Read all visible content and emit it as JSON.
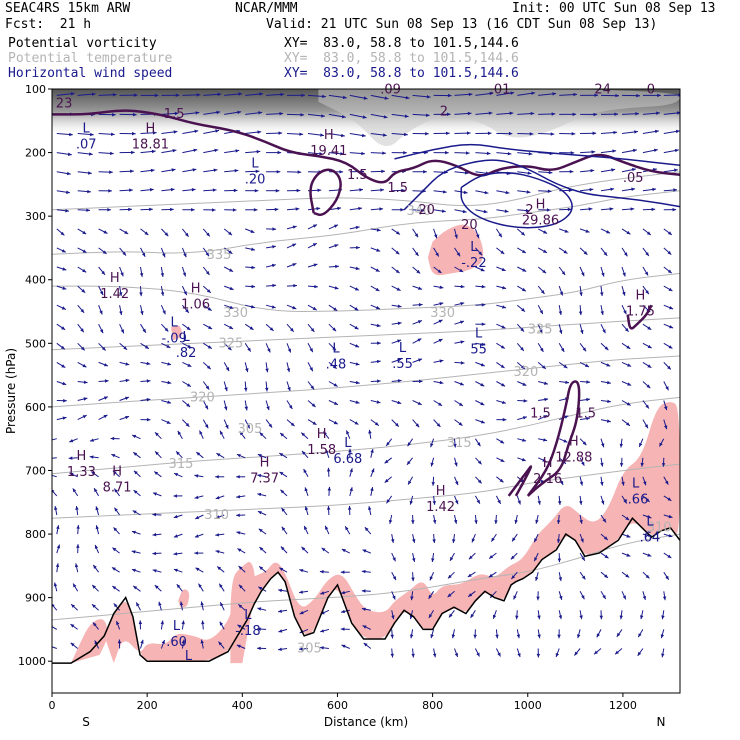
{
  "header": {
    "model": "SEAC4RS 15km ARW",
    "org": "NCAR/MMM",
    "init": "Init: 00 UTC Sun 08 Sep 13",
    "fcst": "Fcst:  21 h",
    "valid": "Valid: 21 UTC Sun 08 Sep 13 (16 CDT Sun 08 Sep 13)",
    "fields": [
      {
        "name": "Potential vorticity",
        "xy": "XY=  83.0, 58.8 to 101.5,144.6"
      },
      {
        "name": "Potential temperature",
        "xy": "XY=  83.0, 58.8 to 101.5,144.6"
      },
      {
        "name": "Horizontal wind speed",
        "xy": "XY=  83.0, 58.8 to 101.5,144.6"
      }
    ]
  },
  "colors": {
    "pv": "#4a1250",
    "theta": "#b4b4b4",
    "wind": "#1a1a8c",
    "pv_fill": "#f6b4b4",
    "terrain": "#000000"
  },
  "chart_data": {
    "type": "cross-section",
    "xlabel": "Distance (km)",
    "ylabel": "Pressure (hPa)",
    "xlim": [
      0,
      1320
    ],
    "ylim": [
      1050,
      100
    ],
    "x_ticks": [
      0,
      200,
      400,
      600,
      800,
      1000,
      1200
    ],
    "y_ticks": [
      100,
      200,
      300,
      400,
      500,
      600,
      700,
      800,
      900,
      1000
    ],
    "ends": {
      "left": "S",
      "right": "N"
    },
    "terrain": [
      [
        0,
        1003
      ],
      [
        40,
        1003
      ],
      [
        80,
        985
      ],
      [
        110,
        960
      ],
      [
        130,
        925
      ],
      [
        155,
        900
      ],
      [
        170,
        930
      ],
      [
        185,
        990
      ],
      [
        200,
        1000
      ],
      [
        260,
        1000
      ],
      [
        330,
        1000
      ],
      [
        370,
        985
      ],
      [
        390,
        960
      ],
      [
        410,
        935
      ],
      [
        425,
        910
      ],
      [
        440,
        890
      ],
      [
        460,
        870
      ],
      [
        475,
        860
      ],
      [
        490,
        875
      ],
      [
        510,
        930
      ],
      [
        530,
        960
      ],
      [
        550,
        955
      ],
      [
        580,
        900
      ],
      [
        600,
        880
      ],
      [
        630,
        940
      ],
      [
        655,
        965
      ],
      [
        700,
        965
      ],
      [
        720,
        940
      ],
      [
        740,
        920
      ],
      [
        760,
        930
      ],
      [
        780,
        950
      ],
      [
        800,
        950
      ],
      [
        820,
        925
      ],
      [
        845,
        915
      ],
      [
        870,
        925
      ],
      [
        890,
        905
      ],
      [
        910,
        890
      ],
      [
        930,
        900
      ],
      [
        950,
        905
      ],
      [
        965,
        880
      ],
      [
        975,
        875
      ],
      [
        990,
        870
      ],
      [
        1010,
        860
      ],
      [
        1030,
        840
      ],
      [
        1060,
        825
      ],
      [
        1080,
        800
      ],
      [
        1100,
        810
      ],
      [
        1120,
        835
      ],
      [
        1150,
        830
      ],
      [
        1190,
        810
      ],
      [
        1220,
        775
      ],
      [
        1260,
        805
      ],
      [
        1280,
        795
      ],
      [
        1300,
        790
      ],
      [
        1320,
        810
      ]
    ],
    "theta_labels": [
      {
        "x": 390,
        "p": 635,
        "t": "305"
      },
      {
        "x": 515,
        "p": 980,
        "t": "305"
      },
      {
        "x": 320,
        "p": 770,
        "t": "310"
      },
      {
        "x": 1250,
        "p": 790,
        "t": "310"
      },
      {
        "x": 245,
        "p": 690,
        "t": "315"
      },
      {
        "x": 830,
        "p": 657,
        "t": "315"
      },
      {
        "x": 290,
        "p": 585,
        "t": "320"
      },
      {
        "x": 970,
        "p": 545,
        "t": "320"
      },
      {
        "x": 350,
        "p": 500,
        "t": "325"
      },
      {
        "x": 1000,
        "p": 478,
        "t": "325"
      },
      {
        "x": 360,
        "p": 452,
        "t": "330"
      },
      {
        "x": 795,
        "p": 452,
        "t": "330"
      },
      {
        "x": 325,
        "p": 361,
        "t": "335"
      },
      {
        "x": 745,
        "p": 292,
        "t": "340"
      }
    ],
    "pv_labels": [
      {
        "x": 8,
        "p": 123,
        "t": "23"
      },
      {
        "x": 235,
        "p": 139,
        "t": "1.5"
      },
      {
        "x": 690,
        "p": 101,
        "t": ".09"
      },
      {
        "x": 920,
        "p": 101,
        "t": ".01"
      },
      {
        "x": 1140,
        "p": 101,
        "t": "24"
      },
      {
        "x": 1250,
        "p": 101,
        "t": "0"
      },
      {
        "x": 815,
        "p": 135,
        "t": "2"
      },
      {
        "x": 620,
        "p": 235,
        "t": "1.5"
      },
      {
        "x": 705,
        "p": 256,
        "t": "1.5"
      },
      {
        "x": 1200,
        "p": 240,
        "t": ".05"
      },
      {
        "x": 995,
        "p": 290,
        "t": "2"
      },
      {
        "x": 1005,
        "p": 610,
        "t": "1.5"
      },
      {
        "x": 770,
        "p": 290,
        "t": "20"
      },
      {
        "x": 860,
        "p": 314,
        "t": "20"
      },
      {
        "x": 1100,
        "p": 610,
        "t": "1.5"
      }
    ],
    "extrema": [
      {
        "x": 55,
        "p": 175,
        "type": "L",
        "v": ".07"
      },
      {
        "x": 190,
        "p": 175,
        "type": "H",
        "v": "18.81"
      },
      {
        "x": 410,
        "p": 230,
        "type": "L",
        "v": ".20"
      },
      {
        "x": 565,
        "p": 185,
        "type": "H",
        "v": "19.41"
      },
      {
        "x": 1010,
        "p": 294,
        "type": "H",
        "v": "29.86"
      },
      {
        "x": 870,
        "p": 361,
        "type": "L",
        "v": "-.22"
      },
      {
        "x": 115,
        "p": 410,
        "type": "H",
        "v": "1.42"
      },
      {
        "x": 285,
        "p": 426,
        "type": "H",
        "v": "1.06"
      },
      {
        "x": 240,
        "p": 480,
        "type": "L",
        "v": "-.09"
      },
      {
        "x": 265,
        "p": 503,
        "type": "L",
        "v": ".82"
      },
      {
        "x": 580,
        "p": 521,
        "type": "L",
        "v": ".48"
      },
      {
        "x": 720,
        "p": 520,
        "type": "L",
        "v": ".55"
      },
      {
        "x": 880,
        "p": 497,
        "type": "L",
        "v": "55"
      },
      {
        "x": 1220,
        "p": 437,
        "type": "H",
        "v": "1.75"
      },
      {
        "x": 550,
        "p": 655,
        "type": "H",
        "v": "1.58"
      },
      {
        "x": 605,
        "p": 669,
        "type": "L",
        "v": "6.68"
      },
      {
        "x": 1080,
        "p": 667,
        "type": "H",
        "v": "12.88"
      },
      {
        "x": 1025,
        "p": 701,
        "type": "H",
        "v": "2.16"
      },
      {
        "x": 45,
        "p": 690,
        "type": "H",
        "v": "1.33"
      },
      {
        "x": 120,
        "p": 714,
        "type": "H",
        "v": "8.71"
      },
      {
        "x": 430,
        "p": 700,
        "type": "H",
        "v": "7.37"
      },
      {
        "x": 800,
        "p": 745,
        "type": "H",
        "v": "1.42"
      },
      {
        "x": 1210,
        "p": 733,
        "type": "L",
        "v": "-.66"
      },
      {
        "x": 1240,
        "p": 793,
        "type": "L",
        "v": ".64"
      },
      {
        "x": 245,
        "p": 957,
        "type": "L",
        "v": ".60"
      },
      {
        "x": 395,
        "p": 940,
        "type": "L",
        "v": "-.18"
      },
      {
        "x": 270,
        "p": 1004,
        "type": "L",
        "v": ""
      }
    ]
  }
}
